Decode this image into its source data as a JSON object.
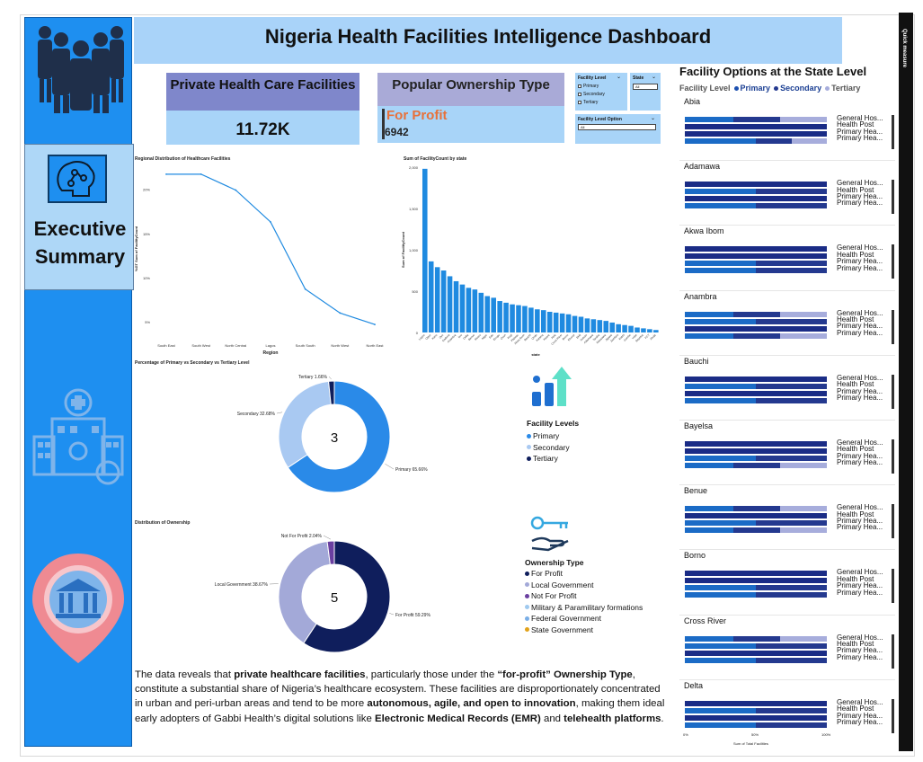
{
  "title": "Nigeria Health Facilities Intelligence Dashboard",
  "quick_bar_label": "Quick measure",
  "sidebar": {
    "exec_title_line1": "Executive",
    "exec_title_line2": "Summary",
    "icons": [
      "people-group-icon",
      "brain-circuit-icon",
      "hospital-building-icon",
      "location-bank-icon"
    ]
  },
  "kpis": {
    "private_label": "Private Health Care Facilities",
    "private_value": "11.72K",
    "ownership_label": "Popular Ownership Type",
    "ownership_value": "For Profit",
    "ownership_count": "6942"
  },
  "slicers": {
    "facility_level_label": "Facility Level",
    "facility_level_options": [
      "Primary",
      "Secondary",
      "Tertiary"
    ],
    "state_label": "State",
    "state_value": "All",
    "facility_level_option_label": "Facility Level Option",
    "facility_level_option_value": "All"
  },
  "colors": {
    "primary": "#2a8ae8",
    "secondary": "#a9c9f2",
    "tertiary": "#0f1e5c",
    "for_profit": "#0f1e5c",
    "local_government": "#a3a9d8",
    "not_for_profit": "#6a3fa0",
    "military": "#9fc9ef",
    "federal": "#7aaee6",
    "state_gov": "#e2a21a",
    "bar_primary": "#1d50b0",
    "bar_primary_light": "#1b6bc6",
    "bar_secondary": "#24398f",
    "bar_tertiary": "#a7addc",
    "bar_dark": "#1a2c86"
  },
  "chart_data": [
    {
      "type": "line",
      "title": "Regional Distribution of Healthcare Facilities",
      "xlabel": "Region",
      "ylabel": "%GT Sum of FacilityCount",
      "categories": [
        "South East",
        "South West",
        "North Central",
        "Lagos",
        "South South",
        "North West",
        "North East"
      ],
      "values": [
        21.7,
        21.7,
        19.9,
        16.3,
        8.7,
        6.0,
        4.7
      ],
      "ylim": [
        4,
        22.5
      ],
      "yticks": [
        "20%",
        "15%",
        "10%",
        "5%"
      ],
      "ytick_values": [
        20,
        15,
        10,
        5
      ]
    },
    {
      "type": "bar",
      "title": "Sum of FacilityCount by state",
      "xlabel": "state",
      "ylabel": "Sum of FacilityCount",
      "ylim": [
        0,
        2000
      ],
      "yticks": [
        "2,000",
        "1,500",
        "1,000",
        "500",
        "0"
      ],
      "ytick_values": [
        2000,
        1500,
        1000,
        500,
        0
      ],
      "categories": [
        "Lagos",
        "Ogun",
        "Kano",
        "Oyo",
        "Kaduna",
        "Anambra",
        "Imo",
        "Delta",
        "Benue",
        "Rivers",
        "Niger",
        "Edo",
        "Enugu",
        "Osun",
        "Kogi",
        "Plateau",
        "Akwa Ibom",
        "Bauchi",
        "Ondo",
        "Katsina",
        "Kwara",
        "Abia",
        "Cross River",
        "Borno",
        "Ebonyi",
        "Ekiti",
        "Sokoto",
        "Adamawa",
        "Taraba",
        "Nasarawa",
        "Jigawa",
        "Zamfara",
        "Kebbi",
        "Gombe",
        "Yobe",
        "Bayelsa",
        "FCT",
        "Abuja"
      ],
      "values": [
        1980,
        860,
        790,
        750,
        680,
        620,
        580,
        540,
        520,
        480,
        440,
        420,
        380,
        360,
        340,
        330,
        320,
        300,
        280,
        270,
        250,
        240,
        230,
        220,
        200,
        190,
        170,
        160,
        150,
        140,
        120,
        100,
        90,
        80,
        60,
        50,
        40,
        30
      ]
    },
    {
      "type": "pie",
      "title": "Percentage of Primary vs Secondary vs Tertiary Level",
      "center_label": "3",
      "slices": [
        {
          "name": "Primary",
          "value": 65.66,
          "label": "Primary 65.66%"
        },
        {
          "name": "Secondary",
          "value": 32.68,
          "label": "Secondary 32.68%"
        },
        {
          "name": "Tertiary",
          "value": 1.66,
          "label": "Tertiary 1.66%"
        }
      ]
    },
    {
      "type": "pie",
      "title": "Distribution of Ownership",
      "center_label": "5",
      "slices": [
        {
          "name": "For Profit",
          "value": 59.29,
          "label": "For Profit 59.29%"
        },
        {
          "name": "Local Government",
          "value": 38.67,
          "label": "Local Government 38.67%"
        },
        {
          "name": "Not For Profit",
          "value": 2.04,
          "label": "Not For Profit 2.04%"
        }
      ]
    },
    {
      "type": "bar",
      "title": "Facility Options at the State Level",
      "xlabel": "Sum of Total Facilities",
      "xticks": [
        "0%",
        "50%",
        "100%"
      ],
      "legend_label": "Facility Level",
      "legend": [
        "Primary",
        "Secondary",
        "Tertiary"
      ],
      "row_labels": [
        "General Hos...",
        "Health Post",
        "Primary Hea...",
        "Primary Hea..."
      ],
      "states": [
        {
          "name": "Abia",
          "rows": [
            [
              34,
              33,
              33
            ],
            [
              100,
              0,
              0
            ],
            [
              100,
              0,
              0
            ],
            [
              50,
              25,
              25
            ]
          ]
        },
        {
          "name": "Adamawa",
          "rows": [
            [
              100,
              0,
              0
            ],
            [
              50,
              50,
              0
            ],
            [
              100,
              0,
              0
            ],
            [
              50,
              50,
              0
            ]
          ]
        },
        {
          "name": "Akwa Ibom",
          "rows": [
            [
              100,
              0,
              0
            ],
            [
              100,
              0,
              0
            ],
            [
              50,
              50,
              0
            ],
            [
              50,
              50,
              0
            ]
          ]
        },
        {
          "name": "Anambra",
          "rows": [
            [
              34,
              33,
              33
            ],
            [
              50,
              50,
              0
            ],
            [
              100,
              0,
              0
            ],
            [
              34,
              33,
              33
            ]
          ]
        },
        {
          "name": "Bauchi",
          "rows": [
            [
              100,
              0,
              0
            ],
            [
              50,
              50,
              0
            ],
            [
              100,
              0,
              0
            ],
            [
              50,
              50,
              0
            ]
          ]
        },
        {
          "name": "Bayelsa",
          "rows": [
            [
              100,
              0,
              0
            ],
            [
              100,
              0,
              0
            ],
            [
              50,
              50,
              0
            ],
            [
              34,
              33,
              33
            ]
          ]
        },
        {
          "name": "Benue",
          "rows": [
            [
              34,
              33,
              33
            ],
            [
              100,
              0,
              0
            ],
            [
              50,
              50,
              0
            ],
            [
              34,
              33,
              33
            ]
          ]
        },
        {
          "name": "Borno",
          "rows": [
            [
              100,
              0,
              0
            ],
            [
              100,
              0,
              0
            ],
            [
              50,
              50,
              0
            ],
            [
              50,
              50,
              0
            ]
          ]
        },
        {
          "name": "Cross River",
          "rows": [
            [
              34,
              33,
              33
            ],
            [
              50,
              50,
              0
            ],
            [
              100,
              0,
              0
            ],
            [
              50,
              50,
              0
            ]
          ]
        },
        {
          "name": "Delta",
          "rows": [
            [
              100,
              0,
              0
            ],
            [
              50,
              50,
              0
            ],
            [
              100,
              0,
              0
            ],
            [
              50,
              50,
              0
            ]
          ]
        }
      ]
    }
  ],
  "legends": {
    "facility_levels_title": "Facility Levels",
    "facility_levels": [
      "Primary",
      "Secondary",
      "Tertiary"
    ],
    "ownership_title": "Ownership Type",
    "ownership": [
      "For Profit",
      "Local Government",
      "Not For Profit",
      "Military & Paramilitary formations",
      "Federal Government",
      "State Government"
    ]
  },
  "narrative": {
    "p1": "The data reveals that ",
    "b1": "private healthcare facilities",
    "p2": ", particularly those under the ",
    "b2": "“for-profit” Ownership Type",
    "p3": ", constitute a substantial share of Nigeria’s healthcare ecosystem. These facilities are disproportionately concentrated in urban and peri-urban areas and tend to be more ",
    "b3": "autonomous, agile, and open to innovation",
    "p4": ", making them ideal early adopters of Gabbi Health’s digital solutions like ",
    "b4": "Electronic Medical Records (EMR)",
    "p5": " and ",
    "b5": "telehealth platforms",
    "p6": "."
  }
}
